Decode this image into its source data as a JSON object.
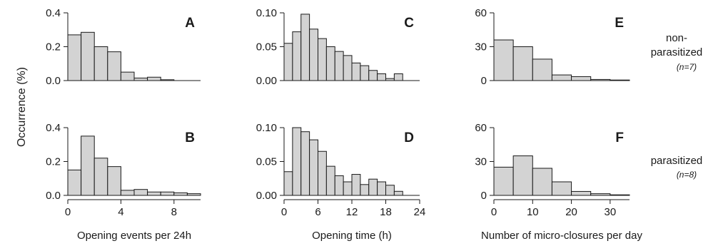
{
  "figure": {
    "ylabel": "Occurrence (%)",
    "groups": [
      {
        "label_line1": "non-",
        "label_line2": "parasitized",
        "n": "(n=7)"
      },
      {
        "label_line1": "parasitized",
        "label_line2": "",
        "n": "(n=8)"
      }
    ]
  },
  "chart_data": [
    {
      "type": "bar",
      "panel": "A",
      "row": 0,
      "col": 0,
      "xlabel": "",
      "ylabel": "",
      "bin_width": 1,
      "x_start": 0,
      "xlim": [
        0,
        10
      ],
      "ylim": [
        0,
        0.4
      ],
      "xticks": [],
      "yticks": [
        "0.0",
        "0.2",
        "0.4"
      ],
      "values": [
        0.27,
        0.285,
        0.2,
        0.17,
        0.05,
        0.015,
        0.02,
        0.005,
        0.0,
        0.0
      ]
    },
    {
      "type": "bar",
      "panel": "B",
      "row": 1,
      "col": 0,
      "xlabel": "Opening events per 24h",
      "ylabel": "",
      "bin_width": 1,
      "x_start": 0,
      "xlim": [
        0,
        10
      ],
      "ylim": [
        0,
        0.4
      ],
      "xticks": [
        "0",
        "4",
        "8"
      ],
      "yticks": [
        "0.0",
        "0.2",
        "0.4"
      ],
      "values": [
        0.15,
        0.35,
        0.22,
        0.17,
        0.03,
        0.035,
        0.02,
        0.02,
        0.015,
        0.01
      ]
    },
    {
      "type": "bar",
      "panel": "C",
      "row": 0,
      "col": 1,
      "xlabel": "",
      "ylabel": "",
      "bin_width": 1.5,
      "x_start": 0,
      "xlim": [
        0,
        24
      ],
      "ylim": [
        0,
        0.1
      ],
      "xticks": [],
      "yticks": [
        "0.00",
        "0.05",
        "0.10"
      ],
      "values": [
        0.055,
        0.072,
        0.098,
        0.076,
        0.062,
        0.05,
        0.043,
        0.037,
        0.026,
        0.022,
        0.015,
        0.01,
        0.003,
        0.01
      ]
    },
    {
      "type": "bar",
      "panel": "D",
      "row": 1,
      "col": 1,
      "xlabel": "Opening time (h)",
      "ylabel": "",
      "bin_width": 1.5,
      "x_start": 0,
      "xlim": [
        0,
        24
      ],
      "ylim": [
        0,
        0.1
      ],
      "xticks": [
        "0",
        "6",
        "12",
        "18",
        "24"
      ],
      "yticks": [
        "0.00",
        "0.05",
        "0.10"
      ],
      "values": [
        0.035,
        0.1,
        0.094,
        0.082,
        0.065,
        0.043,
        0.029,
        0.02,
        0.031,
        0.016,
        0.024,
        0.02,
        0.015,
        0.006
      ]
    },
    {
      "type": "bar",
      "panel": "E",
      "row": 0,
      "col": 2,
      "xlabel": "",
      "ylabel": "",
      "bin_width": 5,
      "x_start": 0,
      "xlim": [
        0,
        35
      ],
      "ylim": [
        0,
        60
      ],
      "xticks": [],
      "yticks": [
        "0",
        "30",
        "60"
      ],
      "values": [
        36,
        30,
        19,
        5,
        3.5,
        1,
        0.5
      ]
    },
    {
      "type": "bar",
      "panel": "F",
      "row": 1,
      "col": 2,
      "xlabel": "Number of micro-closures per day",
      "ylabel": "",
      "bin_width": 5,
      "x_start": 0,
      "xlim": [
        0,
        35
      ],
      "ylim": [
        0,
        60
      ],
      "xticks": [
        "0",
        "10",
        "20",
        "30"
      ],
      "yticks": [
        "0",
        "30",
        "60"
      ],
      "values": [
        25,
        35,
        24,
        12,
        3.5,
        1.5,
        0.5
      ]
    }
  ]
}
